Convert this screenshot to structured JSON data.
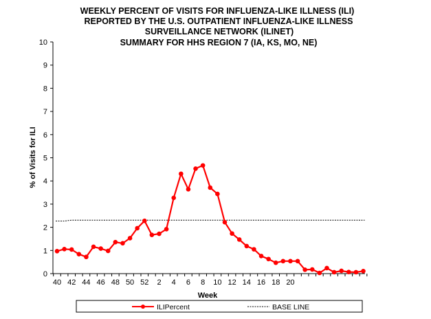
{
  "chart_data": {
    "type": "line",
    "title": [
      "WEEKLY PERCENT  OF VISITS FOR INFLUENZA-LIKE  ILLNESS (ILI)",
      "REPORTED  BY THE U.S. OUTPATIENT  INFLUENZA-LIKE  ILLNESS",
      "SURVEILLANCE  NETWORK  (ILINET)",
      "SUMMARY FOR HHS REGION 7 (IA, KS, MO, NE)"
    ],
    "xlabel": "Week",
    "ylabel": "% of Visits for ILI",
    "ylim": [
      0,
      10
    ],
    "yticks": [
      "0",
      "1",
      "2",
      "3",
      "4",
      "5",
      "6",
      "7",
      "8",
      "9",
      "10"
    ],
    "weeks": [
      "40",
      "41",
      "42",
      "43",
      "44",
      "45",
      "46",
      "47",
      "48",
      "49",
      "50",
      "51",
      "52",
      "1",
      "2",
      "3",
      "4",
      "5",
      "6",
      "7",
      "8",
      "9",
      "10",
      "11",
      "12",
      "13",
      "14",
      "15",
      "16",
      "17",
      "18",
      "19",
      "20",
      "21",
      "22",
      "23",
      "24",
      "25",
      "26",
      "27",
      "28",
      "29",
      "30"
    ],
    "xtick_labels": [
      "40",
      "",
      "42",
      "",
      "44",
      "",
      "46",
      "",
      "48",
      "",
      "50",
      "",
      "52",
      "",
      "2",
      "",
      "4",
      "",
      "6",
      "",
      "8",
      "",
      "10",
      "",
      "12",
      "",
      "14",
      "",
      "16",
      "",
      "18",
      "",
      "20",
      "",
      "",
      "",
      "",
      "",
      "",
      "",
      "",
      "",
      ""
    ],
    "series": [
      {
        "name": "ILIPercent",
        "color": "#ff0000",
        "values": [
          0.97,
          1.06,
          1.04,
          0.84,
          0.72,
          1.16,
          1.08,
          0.98,
          1.36,
          1.31,
          1.53,
          1.96,
          2.28,
          1.67,
          1.72,
          1.92,
          3.27,
          4.31,
          3.64,
          4.53,
          4.67,
          3.71,
          3.44,
          2.22,
          1.73,
          1.47,
          1.19,
          1.05,
          0.76,
          0.63,
          0.47,
          0.54,
          0.54,
          0.54,
          0.17,
          0.18,
          0.03,
          0.24,
          0.06,
          0.12,
          0.07,
          0.06,
          0.11
        ]
      },
      {
        "name": "BASE LINE",
        "color": "#000000",
        "values": [
          2.27,
          2.27,
          2.31,
          2.31,
          2.31,
          2.31,
          2.31,
          2.31,
          2.31,
          2.31,
          2.31,
          2.31,
          2.31,
          2.31,
          2.31,
          2.31,
          2.31,
          2.31,
          2.31,
          2.31,
          2.31,
          2.31,
          2.31,
          2.31,
          2.31,
          2.31,
          2.31,
          2.31,
          2.31,
          2.31,
          2.31,
          2.31,
          2.31,
          2.31,
          2.31,
          2.31,
          2.31,
          2.31,
          2.31,
          2.31,
          2.31,
          2.31,
          2.31
        ]
      }
    ],
    "legend": {
      "position": "bottom",
      "items": [
        {
          "label": "ILIPercent",
          "style": "line-marker",
          "color": "#ff0000"
        },
        {
          "label": "BASE LINE",
          "style": "dashed",
          "color": "#000000"
        }
      ]
    },
    "grid": false
  }
}
